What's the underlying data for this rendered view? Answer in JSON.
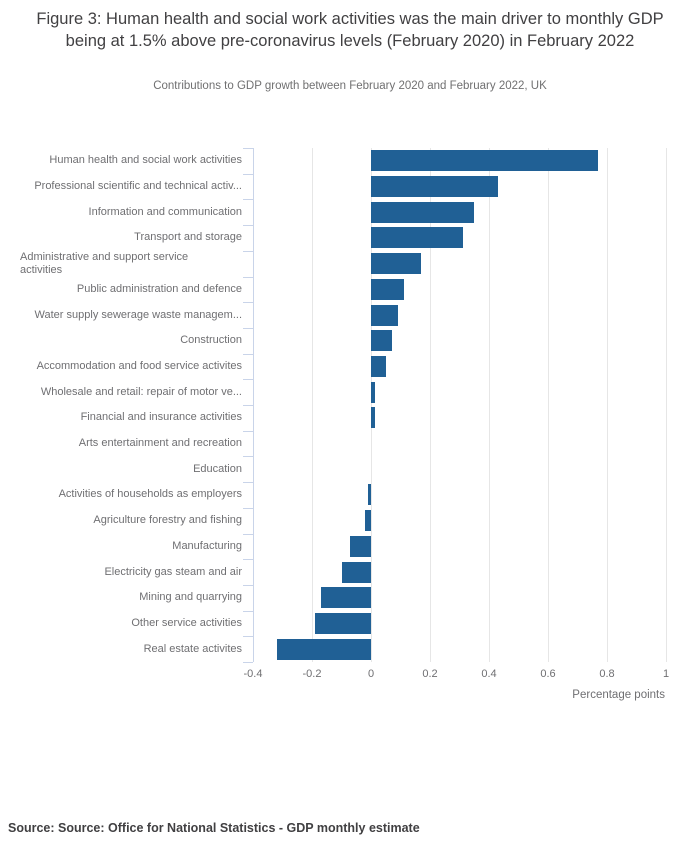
{
  "source": "Source: Source: Office for National Statistics - GDP monthly estimate",
  "chart_data": {
    "type": "bar",
    "orientation": "horizontal",
    "title": "Figure 3: Human health and social work activities was the main driver to monthly GDP being at 1.5% above pre-coronavirus levels (February 2020) in February 2022",
    "subtitle": "Contributions to GDP growth between February 2020 and February 2022, UK",
    "categories": [
      "Human health and social work activities",
      "Professional scientific and technical activ...",
      "Information and communication",
      "Transport and storage",
      "Administrative and support service\nactivities",
      "Public administration and defence",
      "Water supply sewerage waste managem...",
      "Construction",
      "Accommodation and food service activites",
      "Wholesale and retail: repair of motor ve...",
      "Financial and insurance activities",
      "Arts entertainment and recreation",
      "Education",
      "Activities of households as employers",
      "Agriculture forestry and fishing",
      "Manufacturing",
      "Electricity gas steam and air",
      "Mining and quarrying",
      "Other service activities",
      "Real estate activites"
    ],
    "values": [
      0.77,
      0.43,
      0.35,
      0.31,
      0.17,
      0.11,
      0.09,
      0.07,
      0.05,
      0.015,
      0.015,
      0,
      0,
      -0.01,
      -0.02,
      -0.07,
      -0.1,
      -0.17,
      -0.19,
      -0.32
    ],
    "xlabel": "Percentage points",
    "xticks": [
      -0.4,
      -0.2,
      0,
      0.2,
      0.4,
      0.6,
      0.8,
      1
    ],
    "xtick_labels": [
      "-0.4",
      "-0.2",
      "0",
      "0.2",
      "0.4",
      "0.6",
      "0.8",
      "1"
    ],
    "xlim": [
      -0.4,
      1.02
    ],
    "grid": true,
    "legend": false,
    "bar_color": "#206095",
    "grid_color": "#e6e6e6",
    "axis_color": "#c9d4e9",
    "label_color": "#6f6f72"
  }
}
